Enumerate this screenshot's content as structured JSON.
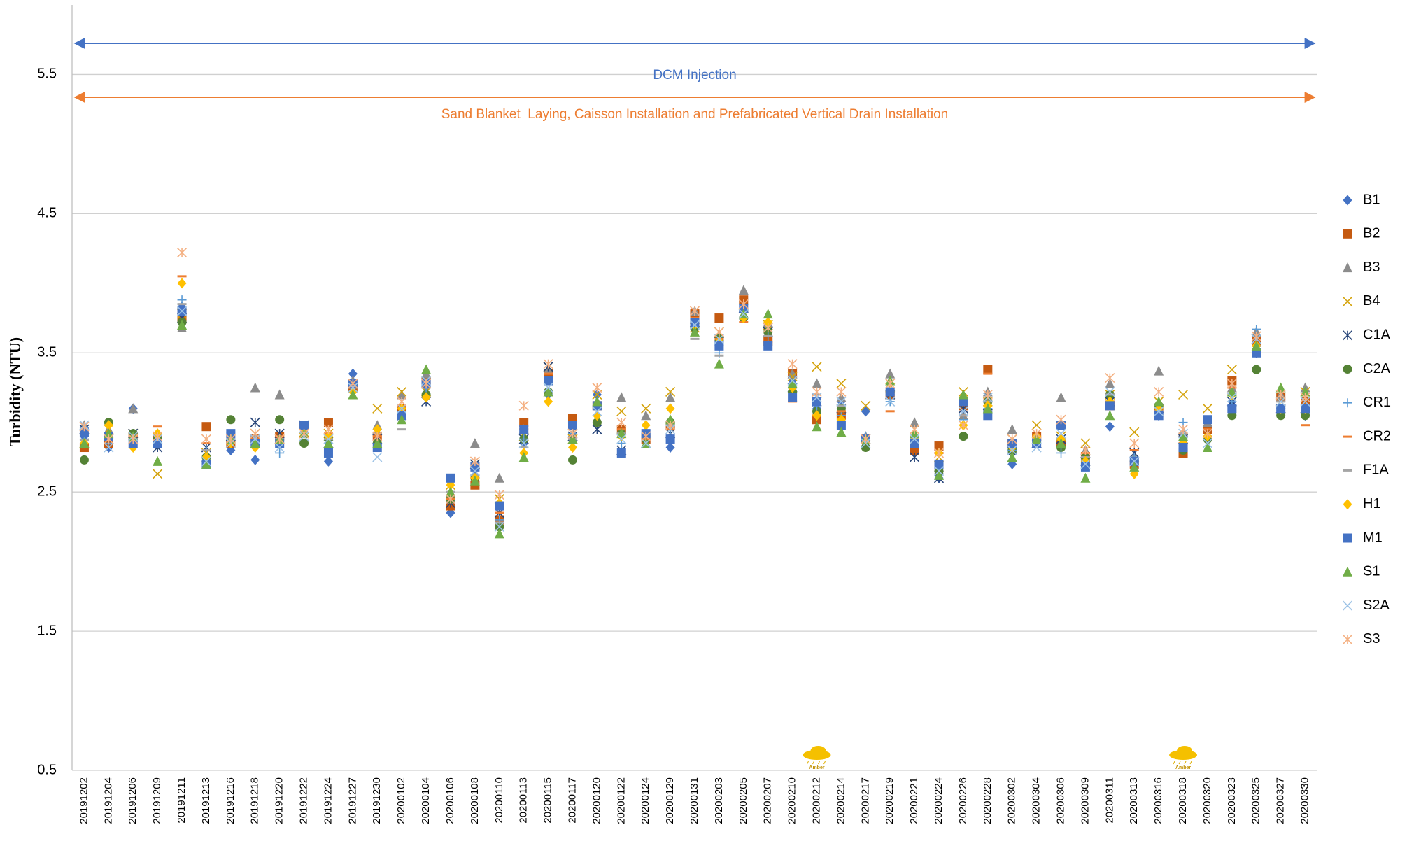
{
  "chart_data": {
    "type": "scatter",
    "y_label": "Turbidity (NTU)",
    "categories": [
      "20191202",
      "20191204",
      "20191206",
      "20191209",
      "20191211",
      "20191213",
      "20191216",
      "20191218",
      "20191220",
      "20191222",
      "20191224",
      "20191227",
      "20191230",
      "20200102",
      "20200104",
      "20200106",
      "20200108",
      "20200110",
      "20200113",
      "20200115",
      "20200117",
      "20200120",
      "20200122",
      "20200124",
      "20200129",
      "20200131",
      "20200203",
      "20200205",
      "20200207",
      "20200210",
      "20200212",
      "20200214",
      "20200217",
      "20200219",
      "20200221",
      "20200224",
      "20200226",
      "20200228",
      "20200302",
      "20200304",
      "20200306",
      "20200309",
      "20200311",
      "20200313",
      "20200316",
      "20200318",
      "20200320",
      "20200323",
      "20200325",
      "20200327",
      "20200330"
    ],
    "ylim": [
      0.5,
      6
    ],
    "yticks": [
      0.5,
      1.5,
      2.5,
      3.5,
      4.5,
      5.5
    ],
    "grid": true,
    "legend": "right",
    "annotations": [
      {
        "text": "DCM Injection",
        "color": "#4472c4"
      },
      {
        "text": "Sand Blanket  Laying, Caisson Installation and Prefabricated Vertical Drain Installation",
        "color": "#ed7d31"
      }
    ],
    "warnings": [
      {
        "category": "20200212",
        "label": "Amber"
      },
      {
        "category": "20200318",
        "label": "Amber"
      }
    ],
    "series": [
      {
        "name": "B1",
        "color": "#4472c4",
        "marker": "diamond",
        "values": [
          2.9,
          2.82,
          3.1,
          2.85,
          3.83,
          2.7,
          2.8,
          2.73,
          2.85,
          2.95,
          2.72,
          3.35,
          2.85,
          3.05,
          3.25,
          2.35,
          2.62,
          2.3,
          2.85,
          3.2,
          2.9,
          3.2,
          2.78,
          2.9,
          2.82,
          3.72,
          3.55,
          3.85,
          3.6,
          3.3,
          3.1,
          3.15,
          3.08,
          3.2,
          2.85,
          2.6,
          3.1,
          3.12,
          2.7,
          2.85,
          2.82,
          2.72,
          2.97,
          2.68,
          3.05,
          2.85,
          2.95,
          3.15,
          3.5,
          3.1,
          3.05
        ]
      },
      {
        "name": "B2",
        "color": "#c55a11",
        "marker": "square",
        "values": [
          2.82,
          2.85,
          2.9,
          2.9,
          3.75,
          2.97,
          2.85,
          2.88,
          2.9,
          2.98,
          3.0,
          3.25,
          2.9,
          3.1,
          3.3,
          2.4,
          2.55,
          2.3,
          3.0,
          3.35,
          3.03,
          3.12,
          2.95,
          2.88,
          2.98,
          3.78,
          3.75,
          3.88,
          3.58,
          3.35,
          3.02,
          3.05,
          2.88,
          3.2,
          2.8,
          2.83,
          3.12,
          3.38,
          2.85,
          2.9,
          2.85,
          2.75,
          3.12,
          2.7,
          3.1,
          2.78,
          2.95,
          3.3,
          3.58,
          3.18,
          3.15
        ]
      },
      {
        "name": "B3",
        "color": "#8c8c8c",
        "marker": "triangle",
        "values": [
          2.98,
          2.95,
          3.1,
          2.85,
          3.68,
          2.75,
          2.9,
          3.25,
          3.2,
          2.95,
          2.9,
          3.3,
          2.98,
          3.2,
          3.35,
          2.45,
          2.85,
          2.6,
          2.95,
          3.38,
          2.92,
          3.15,
          3.18,
          3.05,
          3.18,
          3.8,
          3.62,
          3.95,
          3.72,
          3.35,
          3.28,
          3.18,
          2.9,
          3.35,
          3.0,
          2.68,
          3.05,
          3.22,
          2.95,
          2.9,
          3.18,
          2.8,
          3.28,
          2.75,
          3.37,
          2.93,
          3.0,
          3.25,
          3.65,
          3.2,
          3.25
        ]
      },
      {
        "name": "B4",
        "color": "#d4a20a",
        "marker": "x",
        "values": [
          2.85,
          2.95,
          2.92,
          2.63,
          3.78,
          2.78,
          2.85,
          2.92,
          2.88,
          2.93,
          2.92,
          3.25,
          3.1,
          3.22,
          3.22,
          2.55,
          2.7,
          2.45,
          2.9,
          3.4,
          2.88,
          3.2,
          3.08,
          3.1,
          3.22,
          3.68,
          3.65,
          3.78,
          3.7,
          3.33,
          3.4,
          3.28,
          3.12,
          3.25,
          2.95,
          2.75,
          3.22,
          3.15,
          2.88,
          2.98,
          2.9,
          2.85,
          3.2,
          2.93,
          3.15,
          3.2,
          3.1,
          3.38,
          3.6,
          3.15,
          3.22
        ]
      },
      {
        "name": "C1A",
        "color": "#264478",
        "marker": "asterisk",
        "values": [
          2.95,
          2.88,
          2.92,
          2.82,
          3.75,
          2.82,
          2.9,
          3.0,
          2.92,
          2.98,
          2.85,
          3.28,
          2.88,
          3.05,
          3.15,
          2.42,
          2.7,
          2.35,
          2.88,
          3.4,
          2.9,
          2.95,
          2.8,
          2.85,
          2.92,
          3.72,
          3.58,
          3.82,
          3.65,
          3.25,
          3.15,
          3.1,
          2.88,
          3.2,
          2.75,
          2.6,
          3.1,
          3.12,
          2.75,
          2.85,
          2.88,
          2.72,
          3.15,
          2.78,
          3.1,
          2.88,
          2.92,
          3.15,
          3.6,
          3.1,
          3.1
        ]
      },
      {
        "name": "C2A",
        "color": "#548235",
        "marker": "circle",
        "values": [
          2.73,
          3.0,
          2.92,
          2.88,
          3.72,
          2.75,
          3.02,
          2.85,
          3.02,
          2.85,
          2.88,
          3.28,
          2.85,
          3.05,
          3.2,
          2.45,
          2.6,
          2.25,
          2.88,
          3.22,
          2.73,
          3.0,
          2.92,
          2.88,
          3.0,
          3.68,
          3.6,
          3.75,
          3.65,
          3.22,
          3.08,
          3.1,
          2.82,
          3.22,
          2.85,
          2.65,
          2.9,
          3.15,
          2.8,
          2.88,
          2.82,
          2.75,
          3.2,
          2.72,
          3.12,
          2.8,
          2.88,
          3.05,
          3.38,
          3.05,
          3.05
        ]
      },
      {
        "name": "CR1",
        "color": "#5b9bd5",
        "marker": "plus",
        "values": [
          2.88,
          2.85,
          2.88,
          2.85,
          3.88,
          2.8,
          2.88,
          2.9,
          2.78,
          2.92,
          2.85,
          3.22,
          2.82,
          3.08,
          3.25,
          2.48,
          2.68,
          2.3,
          2.88,
          3.3,
          2.92,
          3.05,
          2.85,
          2.92,
          2.95,
          3.7,
          3.5,
          3.8,
          3.62,
          3.28,
          3.12,
          3.05,
          2.9,
          3.15,
          2.85,
          2.68,
          3.02,
          3.1,
          2.8,
          2.85,
          2.78,
          2.7,
          3.15,
          2.75,
          3.08,
          3.0,
          2.9,
          3.15,
          3.67,
          3.1,
          3.1
        ]
      },
      {
        "name": "CR2",
        "color": "#ed7d31",
        "marker": "dash",
        "values": [
          2.82,
          2.88,
          2.9,
          2.97,
          4.05,
          2.85,
          2.85,
          2.88,
          2.9,
          2.95,
          2.92,
          3.25,
          2.9,
          3.1,
          3.28,
          2.45,
          2.6,
          2.35,
          2.95,
          3.35,
          2.95,
          3.1,
          2.95,
          2.88,
          2.95,
          3.75,
          3.6,
          3.72,
          3.58,
          3.15,
          3.05,
          3.08,
          2.88,
          3.08,
          2.85,
          2.78,
          3.05,
          3.35,
          2.82,
          2.9,
          2.88,
          2.78,
          3.15,
          2.8,
          3.05,
          2.85,
          2.95,
          3.25,
          3.55,
          3.12,
          2.98
        ]
      },
      {
        "name": "F1A",
        "color": "#a5a5a5",
        "marker": "dash",
        "values": [
          2.87,
          2.88,
          2.88,
          2.85,
          3.85,
          2.8,
          2.88,
          2.9,
          2.88,
          2.92,
          2.88,
          3.25,
          2.92,
          2.95,
          3.25,
          2.5,
          2.62,
          2.28,
          2.82,
          3.3,
          2.88,
          3.1,
          2.92,
          2.9,
          2.98,
          3.6,
          3.48,
          3.8,
          3.62,
          3.25,
          3.2,
          3.12,
          2.9,
          3.2,
          2.88,
          2.7,
          3.05,
          3.15,
          2.82,
          2.88,
          2.88,
          2.75,
          3.2,
          2.72,
          3.08,
          2.92,
          2.9,
          3.2,
          3.55,
          3.15,
          3.12
        ]
      },
      {
        "name": "H1",
        "color": "#ffc000",
        "marker": "diamond",
        "values": [
          2.85,
          2.98,
          2.82,
          2.92,
          4.0,
          2.75,
          2.85,
          2.82,
          2.85,
          2.92,
          2.9,
          3.22,
          2.95,
          3.1,
          3.18,
          2.55,
          2.6,
          2.42,
          2.78,
          3.15,
          2.82,
          3.05,
          2.9,
          2.98,
          3.1,
          3.7,
          3.58,
          3.75,
          3.72,
          3.25,
          3.05,
          3.02,
          2.88,
          3.22,
          2.9,
          2.78,
          2.98,
          3.12,
          2.82,
          2.9,
          2.88,
          2.72,
          3.15,
          2.63,
          3.1,
          2.85,
          2.9,
          3.2,
          3.55,
          3.1,
          3.1
        ]
      },
      {
        "name": "M1",
        "color": "#4472c4",
        "marker": "square",
        "values": [
          2.93,
          2.9,
          2.85,
          2.85,
          3.8,
          2.7,
          2.92,
          2.85,
          2.85,
          2.98,
          2.78,
          3.28,
          2.82,
          3.05,
          3.28,
          2.6,
          2.68,
          2.4,
          2.95,
          3.3,
          2.98,
          3.12,
          2.78,
          2.92,
          2.88,
          3.72,
          3.55,
          3.82,
          3.55,
          3.18,
          3.15,
          2.98,
          2.88,
          3.22,
          2.85,
          2.7,
          3.15,
          3.05,
          2.85,
          2.85,
          2.98,
          2.68,
          3.12,
          2.72,
          3.05,
          2.82,
          3.02,
          3.1,
          3.5,
          3.1,
          3.1
        ]
      },
      {
        "name": "S1",
        "color": "#70ad47",
        "marker": "triangle",
        "values": [
          2.85,
          2.92,
          2.9,
          2.72,
          3.7,
          2.7,
          2.88,
          2.85,
          2.88,
          2.92,
          2.85,
          3.2,
          2.85,
          3.02,
          3.38,
          2.5,
          2.58,
          2.2,
          2.75,
          3.22,
          2.88,
          3.15,
          2.92,
          2.85,
          3.02,
          3.65,
          3.42,
          3.78,
          3.78,
          3.28,
          2.97,
          2.93,
          2.88,
          3.3,
          2.92,
          2.62,
          3.2,
          3.1,
          2.75,
          2.88,
          2.85,
          2.6,
          3.05,
          2.68,
          3.15,
          2.9,
          2.82,
          3.22,
          3.55,
          3.25,
          3.22
        ]
      },
      {
        "name": "S2A",
        "color": "#9dc3e6",
        "marker": "x",
        "values": [
          2.98,
          2.82,
          2.9,
          2.88,
          3.8,
          2.72,
          2.85,
          2.88,
          2.82,
          2.9,
          2.88,
          3.25,
          2.75,
          3.1,
          3.3,
          2.45,
          2.65,
          2.25,
          2.85,
          3.25,
          2.92,
          3.08,
          2.88,
          2.85,
          2.95,
          3.7,
          3.6,
          3.78,
          3.68,
          3.3,
          3.18,
          3.15,
          2.85,
          3.15,
          2.88,
          2.65,
          3.08,
          3.18,
          2.8,
          2.82,
          2.92,
          2.7,
          3.22,
          2.72,
          3.08,
          2.92,
          2.85,
          3.18,
          3.6,
          3.15,
          3.15
        ]
      },
      {
        "name": "S3",
        "color": "#f4b183",
        "marker": "asterisk",
        "values": [
          2.97,
          2.88,
          2.88,
          2.9,
          4.22,
          2.88,
          2.88,
          2.92,
          2.88,
          2.92,
          2.95,
          3.28,
          2.9,
          3.15,
          3.28,
          2.45,
          2.72,
          2.48,
          3.12,
          3.42,
          2.92,
          3.25,
          3.0,
          2.9,
          2.98,
          3.8,
          3.65,
          3.85,
          3.68,
          3.42,
          3.22,
          3.22,
          2.88,
          3.28,
          2.95,
          2.78,
          2.98,
          3.2,
          2.88,
          2.92,
          3.02,
          2.8,
          3.32,
          2.85,
          3.22,
          2.95,
          2.92,
          3.28,
          3.62,
          3.2,
          3.18
        ]
      }
    ]
  }
}
